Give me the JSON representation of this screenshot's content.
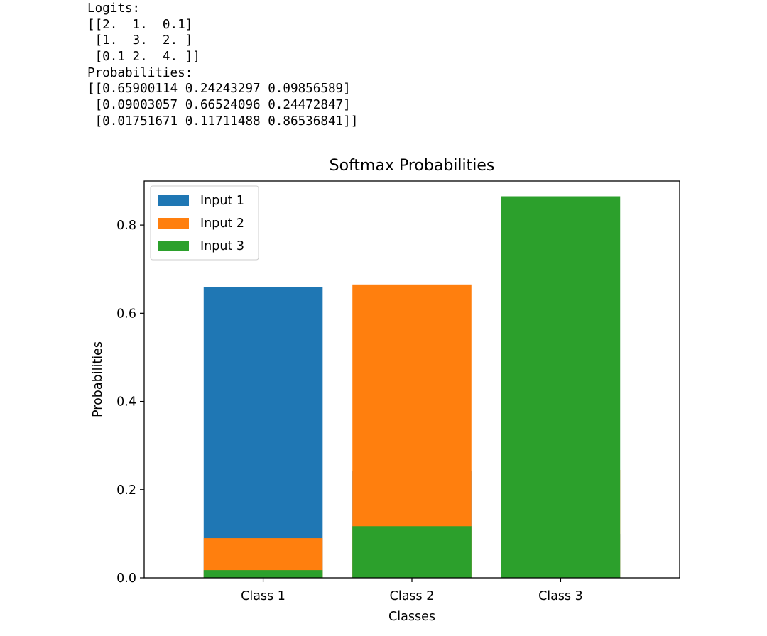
{
  "console": {
    "lines": [
      "Logits:",
      "[[2.  1.  0.1]",
      " [1.  3.  2. ]",
      " [0.1 2.  4. ]]",
      "Probabilities:",
      "[[0.65900114 0.24243297 0.09856589]",
      " [0.09003057 0.66524096 0.24472847]",
      " [0.01751671 0.11711488 0.86536841]]"
    ]
  },
  "chart_data": {
    "type": "bar",
    "title": "Softmax Probabilities",
    "xlabel": "Classes",
    "ylabel": "Probabilities",
    "categories": [
      "Class 1",
      "Class 2",
      "Class 3"
    ],
    "ylim": [
      0,
      0.9
    ],
    "yticks": [
      0.0,
      0.2,
      0.4,
      0.6,
      0.8
    ],
    "ytick_labels": [
      "0.0",
      "0.2",
      "0.4",
      "0.6",
      "0.8"
    ],
    "grid": false,
    "legend_position": "top-left",
    "overlap": "bars drawn on top of each other in series order (not stacked)",
    "series": [
      {
        "name": "Input 1",
        "color": "#1f77b4",
        "values": [
          0.65900114,
          0.24243297,
          0.09856589
        ]
      },
      {
        "name": "Input 2",
        "color": "#ff7f0e",
        "values": [
          0.09003057,
          0.66524096,
          0.24472847
        ]
      },
      {
        "name": "Input 3",
        "color": "#2ca02c",
        "values": [
          0.01751671,
          0.11711488,
          0.86536841
        ]
      }
    ]
  }
}
